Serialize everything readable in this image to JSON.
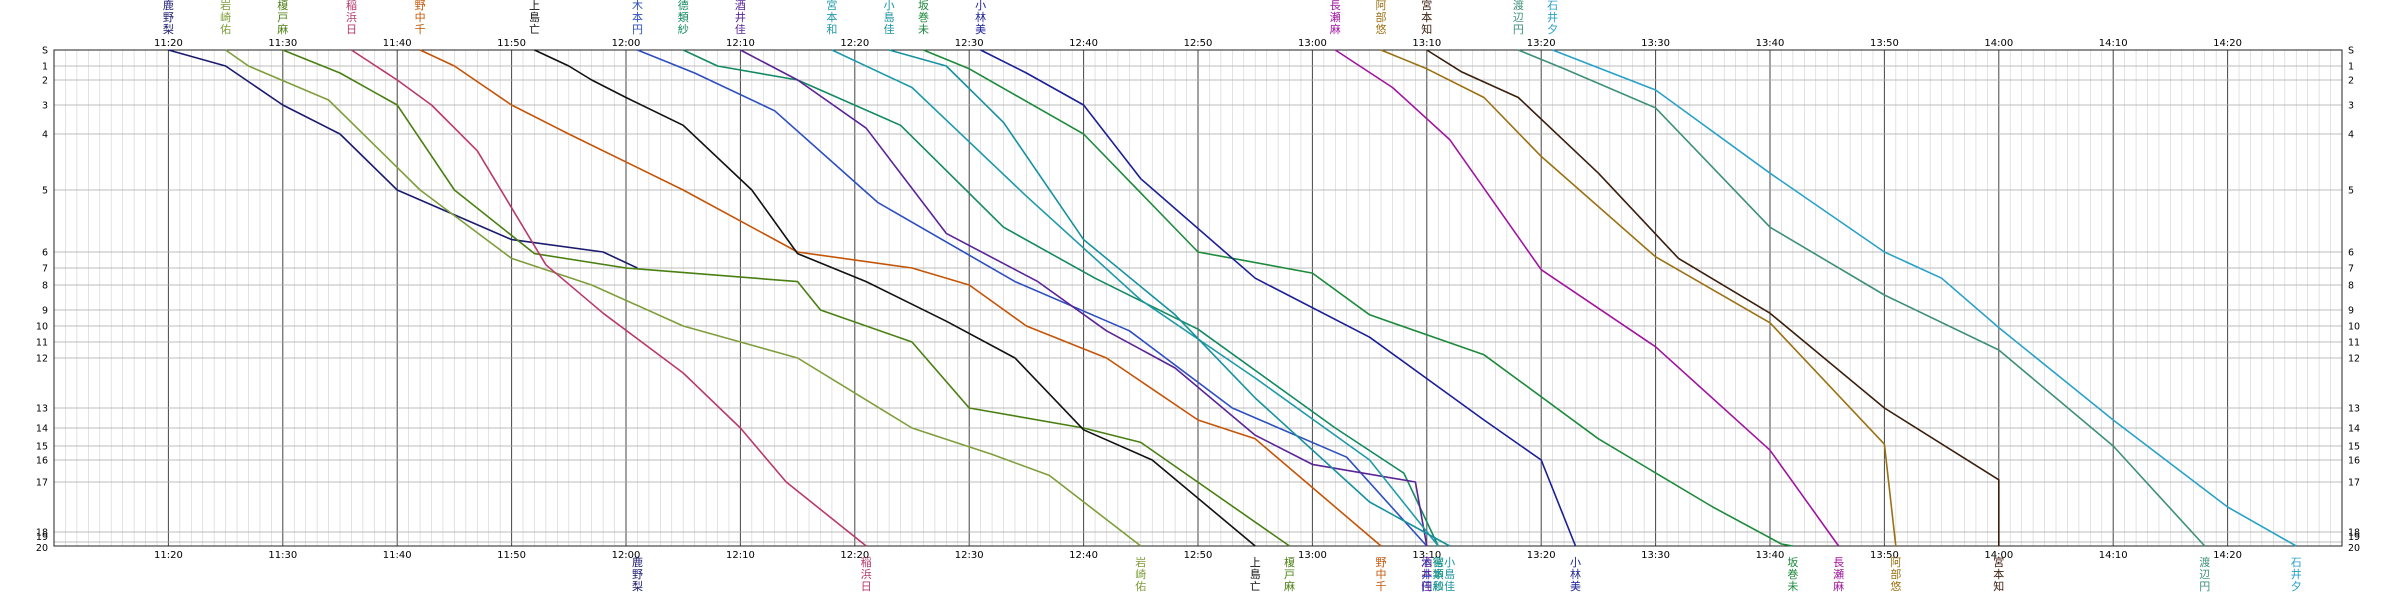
{
  "chart_data": {
    "type": "line",
    "title": "",
    "xlabel": "",
    "ylabel": "",
    "x_ticks": [
      "11:20",
      "11:30",
      "11:40",
      "11:50",
      "12:00",
      "12:10",
      "12:20",
      "12:30",
      "12:40",
      "12:50",
      "13:00",
      "13:10",
      "13:20",
      "13:30",
      "13:40",
      "13:50",
      "14:00",
      "14:10",
      "14:20"
    ],
    "xlim": [
      "11:10",
      "14:30"
    ],
    "y_stations": [
      "S",
      "1",
      "2",
      "3",
      "4",
      "5",
      "6",
      "7",
      "8",
      "9",
      "10",
      "11",
      "12",
      "13",
      "14",
      "15",
      "16",
      "17",
      "18",
      "19",
      "20"
    ],
    "y_axis": "station number, increasing downward",
    "grid": true,
    "series": [
      {
        "name": "鹿野梨",
        "color": "#1a1a6e",
        "points": [
          [
            "11:20",
            "S"
          ],
          [
            "11:25",
            "1"
          ],
          [
            "11:30",
            "3"
          ],
          [
            "11:35",
            "4"
          ],
          [
            "11:40",
            "5"
          ],
          [
            "11:50",
            "5.8"
          ],
          [
            "11:58",
            "6"
          ],
          [
            "12:01",
            "7"
          ]
        ]
      },
      {
        "name": "岩崎佑",
        "color": "#7f9e3b",
        "points": [
          [
            "11:25",
            "S"
          ],
          [
            "11:27",
            "1"
          ],
          [
            "11:34",
            "2.8"
          ],
          [
            "11:42",
            "5"
          ],
          [
            "11:50",
            "6.4"
          ],
          [
            "11:57",
            "8"
          ],
          [
            "12:05",
            "10"
          ],
          [
            "12:15",
            "12"
          ],
          [
            "12:25",
            "14"
          ],
          [
            "12:32",
            "15.6"
          ],
          [
            "12:37",
            "16.7"
          ],
          [
            "12:45",
            "20"
          ]
        ]
      },
      {
        "name": "榎戸麻",
        "color": "#4a7f12",
        "points": [
          [
            "11:30",
            "S"
          ],
          [
            "11:35",
            "1.5"
          ],
          [
            "11:40",
            "3"
          ],
          [
            "11:45",
            "5"
          ],
          [
            "11:52",
            "6.1"
          ],
          [
            "12:00",
            "7"
          ],
          [
            "12:15",
            "7.8"
          ],
          [
            "12:17",
            "9"
          ],
          [
            "12:25",
            "11"
          ],
          [
            "12:30",
            "13"
          ],
          [
            "12:40",
            "14"
          ],
          [
            "12:45",
            "14.8"
          ],
          [
            "12:58",
            "20"
          ]
        ]
      },
      {
        "name": "稲浜日",
        "color": "#b83a6c",
        "points": [
          [
            "11:36",
            "S"
          ],
          [
            "11:40",
            "2"
          ],
          [
            "11:43",
            "3"
          ],
          [
            "11:47",
            "4.3"
          ],
          [
            "11:53",
            "6.8"
          ],
          [
            "11:58",
            "9.2"
          ],
          [
            "12:05",
            "12.3"
          ],
          [
            "12:10",
            "14"
          ],
          [
            "12:14",
            "17"
          ],
          [
            "12:21",
            "20"
          ]
        ]
      },
      {
        "name": "野中千",
        "color": "#c45508",
        "points": [
          [
            "11:42",
            "S"
          ],
          [
            "11:45",
            "1"
          ],
          [
            "11:50",
            "3"
          ],
          [
            "11:55",
            "4"
          ],
          [
            "12:05",
            "5"
          ],
          [
            "12:15",
            "6"
          ],
          [
            "12:25",
            "7"
          ],
          [
            "12:30",
            "8"
          ],
          [
            "12:35",
            "10"
          ],
          [
            "12:42",
            "12"
          ],
          [
            "12:50",
            "13.6"
          ],
          [
            "12:55",
            "14.6"
          ],
          [
            "13:06",
            "20"
          ]
        ]
      },
      {
        "name": "上島亡",
        "color": "#111111",
        "points": [
          [
            "11:52",
            "S"
          ],
          [
            "11:55",
            "1"
          ],
          [
            "11:57",
            "2"
          ],
          [
            "12:00",
            "2.7"
          ],
          [
            "12:05",
            "3.7"
          ],
          [
            "12:11",
            "5"
          ],
          [
            "12:15",
            "6.1"
          ],
          [
            "12:21",
            "7.8"
          ],
          [
            "12:28",
            "9.7"
          ],
          [
            "12:34",
            "12"
          ],
          [
            "12:40",
            "14.1"
          ],
          [
            "12:46",
            "16"
          ],
          [
            "12:55",
            "20"
          ]
        ]
      },
      {
        "name": "木本円",
        "color": "#2d4fbf",
        "points": [
          [
            "12:01",
            "S"
          ],
          [
            "12:06",
            "1.5"
          ],
          [
            "12:13",
            "3.2"
          ],
          [
            "12:22",
            "5.2"
          ],
          [
            "12:34",
            "7.8"
          ],
          [
            "12:44",
            "10.3"
          ],
          [
            "12:53",
            "13"
          ],
          [
            "13:03",
            "15.8"
          ],
          [
            "13:10",
            "20"
          ]
        ]
      },
      {
        "name": "德類紗",
        "color": "#138a63",
        "points": [
          [
            "12:05",
            "S"
          ],
          [
            "12:08",
            "1"
          ],
          [
            "12:15",
            "2"
          ],
          [
            "12:24",
            "3.7"
          ],
          [
            "12:33",
            "5.6"
          ],
          [
            "12:41",
            "7.6"
          ],
          [
            "12:50",
            "10.2"
          ],
          [
            "13:02",
            "14"
          ],
          [
            "13:08",
            "16.6"
          ],
          [
            "13:11",
            "20"
          ]
        ]
      },
      {
        "name": "酒井佳",
        "color": "#5a2496",
        "points": [
          [
            "12:10",
            "S"
          ],
          [
            "12:15",
            "2"
          ],
          [
            "12:21",
            "3.8"
          ],
          [
            "12:28",
            "5.7"
          ],
          [
            "12:36",
            "7.8"
          ],
          [
            "12:42",
            "10.3"
          ],
          [
            "12:48",
            "12.2"
          ],
          [
            "12:55",
            "14.4"
          ],
          [
            "13:00",
            "16.2"
          ],
          [
            "13:09",
            "17"
          ],
          [
            "13:10",
            "20"
          ]
        ]
      },
      {
        "name": "宮本和",
        "color": "#1f9aa8",
        "points": [
          [
            "12:18",
            "S"
          ],
          [
            "12:25",
            "2.3"
          ],
          [
            "12:35",
            "5.1"
          ],
          [
            "12:45",
            "8.6"
          ],
          [
            "12:55",
            "12.4"
          ],
          [
            "13:05",
            "16"
          ],
          [
            "13:11",
            "20"
          ]
        ]
      },
      {
        "name": "小島佳",
        "color": "#16929e",
        "points": [
          [
            "12:23",
            "S"
          ],
          [
            "12:28",
            "1"
          ],
          [
            "12:33",
            "3.6"
          ],
          [
            "12:40",
            "5.8"
          ],
          [
            "12:48",
            "9.3"
          ],
          [
            "12:55",
            "12.8"
          ],
          [
            "13:05",
            "17.4"
          ],
          [
            "13:12",
            "20"
          ]
        ]
      },
      {
        "name": "坂巻未",
        "color": "#1d8a3c",
        "points": [
          [
            "12:26",
            "S"
          ],
          [
            "12:30",
            "1.2"
          ],
          [
            "12:40",
            "4"
          ],
          [
            "12:50",
            "6"
          ],
          [
            "13:00",
            "7.3"
          ],
          [
            "13:05",
            "9.3"
          ],
          [
            "13:15",
            "11.8"
          ],
          [
            "13:25",
            "14.6"
          ],
          [
            "13:35",
            "17.5"
          ],
          [
            "13:41",
            "19.5"
          ],
          [
            "13:42",
            "20"
          ]
        ]
      },
      {
        "name": "小林美",
        "color": "#1b1f96",
        "points": [
          [
            "12:31",
            "S"
          ],
          [
            "12:35",
            "1.5"
          ],
          [
            "12:40",
            "3"
          ],
          [
            "12:45",
            "4.8"
          ],
          [
            "12:55",
            "7.6"
          ],
          [
            "13:05",
            "10.7"
          ],
          [
            "13:15",
            "13.6"
          ],
          [
            "13:20",
            "16"
          ],
          [
            "13:23",
            "20"
          ]
        ]
      },
      {
        "name": "長瀬麻",
        "color": "#a0159e",
        "points": [
          [
            "13:02",
            "S"
          ],
          [
            "13:07",
            "2.3"
          ],
          [
            "13:12",
            "4.1"
          ],
          [
            "13:20",
            "7.1"
          ],
          [
            "13:30",
            "11.3"
          ],
          [
            "13:40",
            "15.3"
          ],
          [
            "13:46",
            "20"
          ]
        ]
      },
      {
        "name": "阿部悠",
        "color": "#9a7113",
        "points": [
          [
            "13:06",
            "S"
          ],
          [
            "13:10",
            "1.2"
          ],
          [
            "13:15",
            "2.7"
          ],
          [
            "13:20",
            "4.4"
          ],
          [
            "13:30",
            "6.3"
          ],
          [
            "13:40",
            "9.8"
          ],
          [
            "13:50",
            "14.9"
          ],
          [
            "13:51",
            "20"
          ]
        ]
      },
      {
        "name": "宮本知",
        "color": "#3b1f0d",
        "points": [
          [
            "13:10",
            "S"
          ],
          [
            "13:13",
            "1.4"
          ],
          [
            "13:18",
            "2.7"
          ],
          [
            "13:25",
            "4.7"
          ],
          [
            "13:32",
            "6.4"
          ],
          [
            "13:40",
            "9.2"
          ],
          [
            "13:50",
            "13"
          ],
          [
            "14:00",
            "16.9"
          ],
          [
            "14:00",
            "20"
          ]
        ]
      },
      {
        "name": "渡辺円",
        "color": "#3e8f7a",
        "points": [
          [
            "13:18",
            "S"
          ],
          [
            "13:22",
            "1.2"
          ],
          [
            "13:30",
            "3.1"
          ],
          [
            "13:40",
            "5.6"
          ],
          [
            "13:50",
            "8.4"
          ],
          [
            "14:00",
            "11.5"
          ],
          [
            "14:10",
            "15"
          ],
          [
            "14:18",
            "20"
          ]
        ]
      },
      {
        "name": "石井夕",
        "color": "#2aa1c8",
        "points": [
          [
            "13:21",
            "S"
          ],
          [
            "13:30",
            "2.4"
          ],
          [
            "13:40",
            "4.7"
          ],
          [
            "13:50",
            "6"
          ],
          [
            "13:55",
            "7.6"
          ],
          [
            "14:00",
            "10.1"
          ],
          [
            "14:10",
            "13.6"
          ],
          [
            "14:20",
            "17.5"
          ],
          [
            "14:26",
            "20"
          ]
        ]
      }
    ]
  }
}
